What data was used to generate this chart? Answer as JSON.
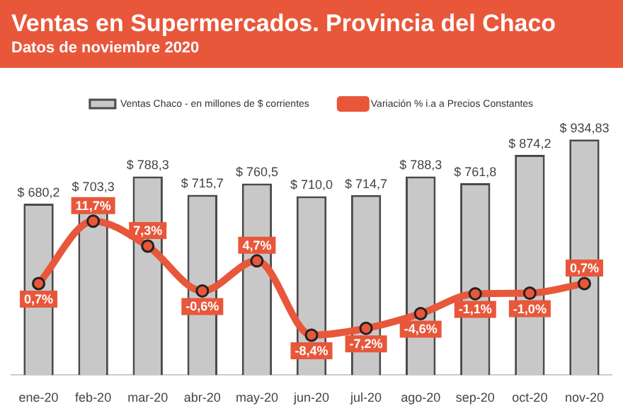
{
  "chart_data": {
    "type": "bar",
    "title": "Ventas en Supermercados. Provincia del Chaco",
    "subtitle": "Datos de noviembre 2020",
    "categories": [
      "ene-20",
      "feb-20",
      "mar-20",
      "abr-20",
      "may-20",
      "jun-20",
      "jul-20",
      "ago-20",
      "sep-20",
      "oct-20",
      "nov-20"
    ],
    "series": [
      {
        "name": "Ventas Chaco - en millones de $ corrientes",
        "color": "#c8c8c8",
        "values": [
          680.2,
          703.3,
          788.3,
          715.7,
          760.5,
          710.0,
          714.7,
          788.3,
          761.8,
          874.2,
          934.83
        ],
        "value_labels": [
          "$ 680,2",
          "$ 703,3",
          "$ 788,3",
          "$ 715,7",
          "$ 760,5",
          "$ 710,0",
          "$ 714,7",
          "$ 788,3",
          "$ 761,8",
          "$ 874,2",
          "$ 934,83"
        ]
      },
      {
        "name": "Variación % i.a a Precios Constantes",
        "type": "line",
        "axis": "y2",
        "color": "#e8573a",
        "marker": "circle",
        "line_style": "solid",
        "values": [
          0.7,
          11.7,
          7.3,
          -0.6,
          4.7,
          -8.4,
          -7.2,
          -4.6,
          -1.1,
          -1.0,
          0.7
        ],
        "value_labels": [
          "0,7%",
          "11,7%",
          "7,3%",
          "-0,6%",
          "4,7%",
          "-8,4%",
          "-7,2%",
          "-4,6%",
          "-1,1%",
          "-1,0%",
          "0,7%"
        ]
      }
    ],
    "tick_labels": "x",
    "grid": false,
    "legend": "top"
  }
}
